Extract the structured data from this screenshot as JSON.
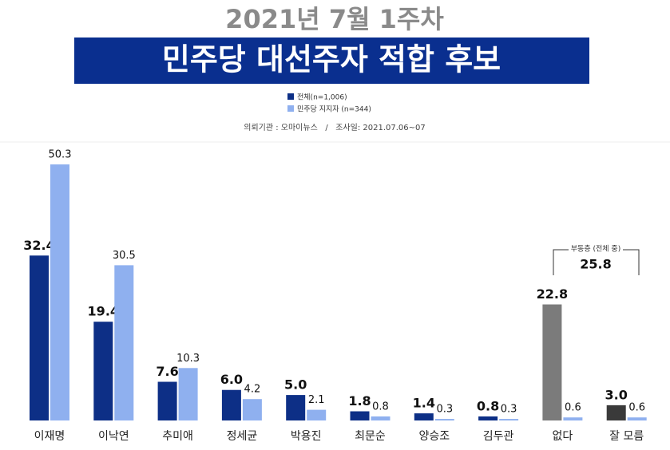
{
  "chart_data": {
    "type": "bar",
    "subtitle": "2021년 7월 1주차",
    "title": "민주당 대선주자 적합 후보",
    "source": "의뢰기관 : 오마이뉴스   /   조사일: 2021.07.06~07",
    "categories": [
      "이재명",
      "이낙연",
      "추미애",
      "정세균",
      "박용진",
      "최문순",
      "양승조",
      "김두관",
      "없다",
      "잘 모름"
    ],
    "series": [
      {
        "name": "전체(n=1,006)",
        "color": "#0d2f86",
        "colors": [
          "#0d2f86",
          "#0d2f86",
          "#0d2f86",
          "#0d2f86",
          "#0d2f86",
          "#0d2f86",
          "#0d2f86",
          "#0d2f86",
          "#7b7b7b",
          "#3a3a3a"
        ],
        "values": [
          32.4,
          19.4,
          7.6,
          6.0,
          5.0,
          1.8,
          1.4,
          0.8,
          22.8,
          3.0
        ],
        "value_labels": [
          "32.4",
          "19.4",
          "7.6",
          "6.0",
          "5.0",
          "1.8",
          "1.4",
          "0.8",
          "22.8",
          "3.0"
        ]
      },
      {
        "name": "민주당 지지자 (n=344)",
        "color": "#8fb0ef",
        "values": [
          50.3,
          30.5,
          10.3,
          4.2,
          2.1,
          0.8,
          0.3,
          0.3,
          0.6,
          0.6
        ]
      }
    ],
    "annotation": {
      "label": "부동층 (전체 중)",
      "value": 25.8
    }
  }
}
